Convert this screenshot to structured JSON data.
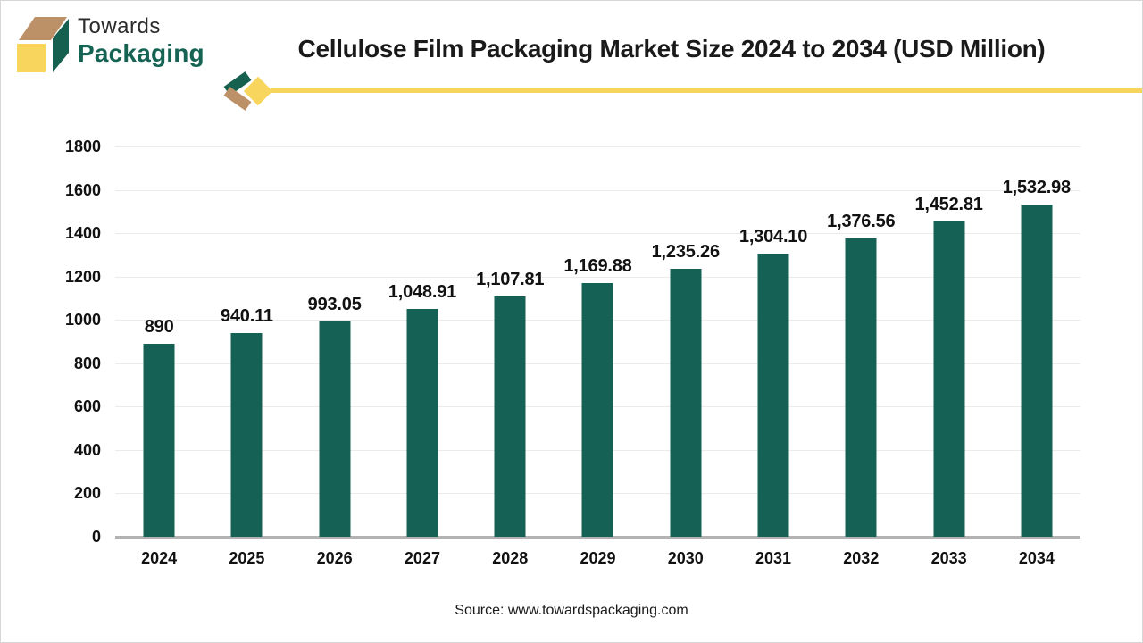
{
  "brand": {
    "name_line1": "Towards",
    "name_line2": "Packaging"
  },
  "footer": {
    "source": "Source: www.towardspackaging.com"
  },
  "colors": {
    "bar": "#166156",
    "brand_green": "#15604F",
    "brand_tan": "#BC9168",
    "brand_yellow": "#F8D55C",
    "divider_line": "#F7D45C",
    "grid_line": "#ebebeb",
    "axis_line": "#b3b3b3",
    "title_text": "#1a1a1a"
  },
  "chart_data": {
    "type": "bar",
    "title": "Cellulose Film Packaging Market Size 2024 to 2034 (USD Million)",
    "xlabel": "",
    "ylabel": "",
    "categories": [
      "2024",
      "2025",
      "2026",
      "2027",
      "2028",
      "2029",
      "2030",
      "2031",
      "2032",
      "2033",
      "2034"
    ],
    "values": [
      890,
      940.11,
      993.05,
      1048.91,
      1107.81,
      1169.88,
      1235.26,
      1304.1,
      1376.56,
      1452.81,
      1532.98
    ],
    "value_labels": [
      "890",
      "940.11",
      "993.05",
      "1,048.91",
      "1,107.81",
      "1,169.88",
      "1,235.26",
      "1,304.10",
      "1,376.56",
      "1,452.81",
      "1,532.98"
    ],
    "ylim": [
      0,
      1800
    ],
    "yticks": [
      0,
      200,
      400,
      600,
      800,
      1000,
      1200,
      1400,
      1600,
      1800
    ],
    "grid": true,
    "legend": false,
    "bar_color": "#166156"
  }
}
